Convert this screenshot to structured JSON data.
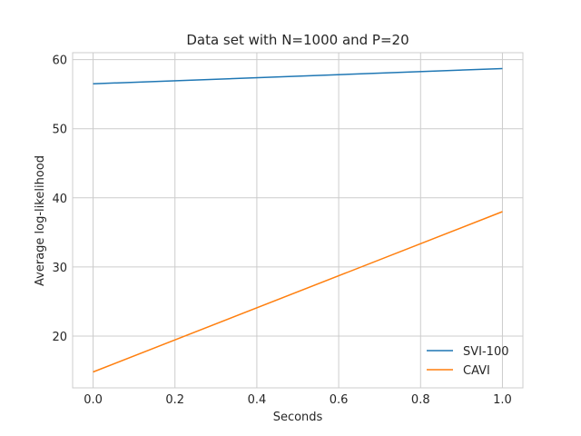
{
  "chart_data": {
    "type": "line",
    "title": "Data set with N=1000 and P=20",
    "xlabel": "Seconds",
    "ylabel": "Average log-likelihood",
    "xlim": [
      -0.05,
      1.05
    ],
    "ylim": [
      12.5,
      61.0
    ],
    "xticks": [
      0.0,
      0.2,
      0.4,
      0.6,
      0.8,
      1.0
    ],
    "xtick_labels": [
      "0.0",
      "0.2",
      "0.4",
      "0.6",
      "0.8",
      "1.0"
    ],
    "yticks": [
      20,
      30,
      40,
      50,
      60
    ],
    "ytick_labels": [
      "20",
      "30",
      "40",
      "50",
      "60"
    ],
    "grid": true,
    "legend_position": "lower-right",
    "series": [
      {
        "name": "SVI-100",
        "color": "#1f77b4",
        "x": [
          0.0,
          1.0
        ],
        "y": [
          56.5,
          58.7
        ]
      },
      {
        "name": "CAVI",
        "color": "#ff7f0e",
        "x": [
          0.0,
          1.0
        ],
        "y": [
          14.8,
          38.0
        ]
      }
    ]
  }
}
